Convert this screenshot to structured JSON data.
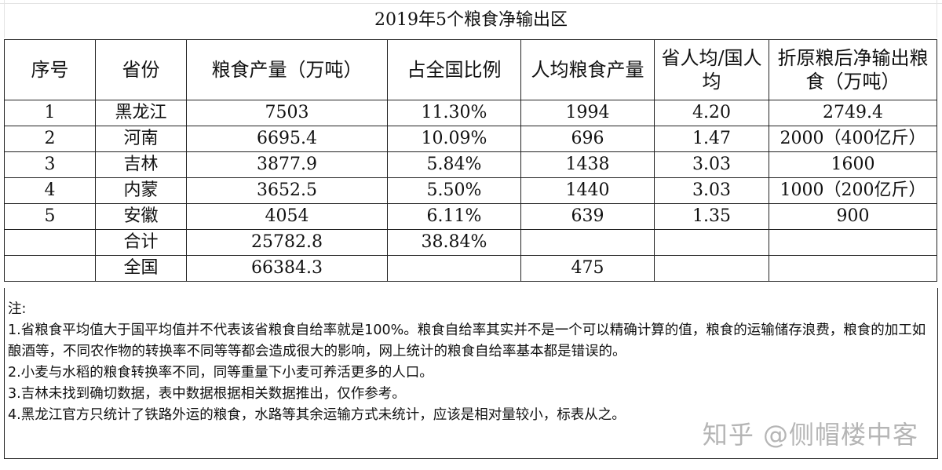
{
  "title": "2019年5个粮食净输出区",
  "headers": [
    "序号",
    "省份",
    "粮食产量（万吨）",
    "占全国比例",
    "人均粮食产量",
    "省人均/国人均",
    "折原粮后净输出粮食（万吨）"
  ],
  "rows": [
    [
      "1",
      "黑龙江",
      "7503",
      "11.30%",
      "1994",
      "4.20",
      "2749.4"
    ],
    [
      "2",
      "河南",
      "6695.4",
      "10.09%",
      "696",
      "1.47",
      "2000（400亿斤）"
    ],
    [
      "3",
      "吉林",
      "3877.9",
      "5.84%",
      "1438",
      "3.03",
      "1600"
    ],
    [
      "4",
      "内蒙",
      "3652.5",
      "5.50%",
      "1440",
      "3.03",
      "1000（200亿斤）"
    ],
    [
      "5",
      "安徽",
      "4054",
      "6.11%",
      "639",
      "1.35",
      "900"
    ],
    [
      "",
      "合计",
      "25782.8",
      "38.84%",
      "",
      "",
      ""
    ],
    [
      "",
      "全国",
      "66384.3",
      "",
      "475",
      "",
      ""
    ]
  ],
  "notes": {
    "label": "注:",
    "items": [
      "1.省粮食平均值大于国平均值并不代表该省粮食自给率就是100%。粮食自给率其实并不是一个可以精确计算的值，粮食的运输储存浪费，粮食的加工如酿酒等，不同农作物的转换率不同等等都会造成很大的影响，网上统计的粮食自给率基本都是错误的。",
      "2.小麦与水稻的粮食转换率不同，同等重量下小麦可养活更多的人口。",
      "3.吉林未找到确切数据，表中数据根据相关数据推出，仅作参考。",
      "4.黑龙江官方只统计了铁路外运的粮食，水路等其余运输方式未统计，应该是相对量较小，标表从之。"
    ]
  },
  "watermark": "知乎 @侧帽楼中客"
}
